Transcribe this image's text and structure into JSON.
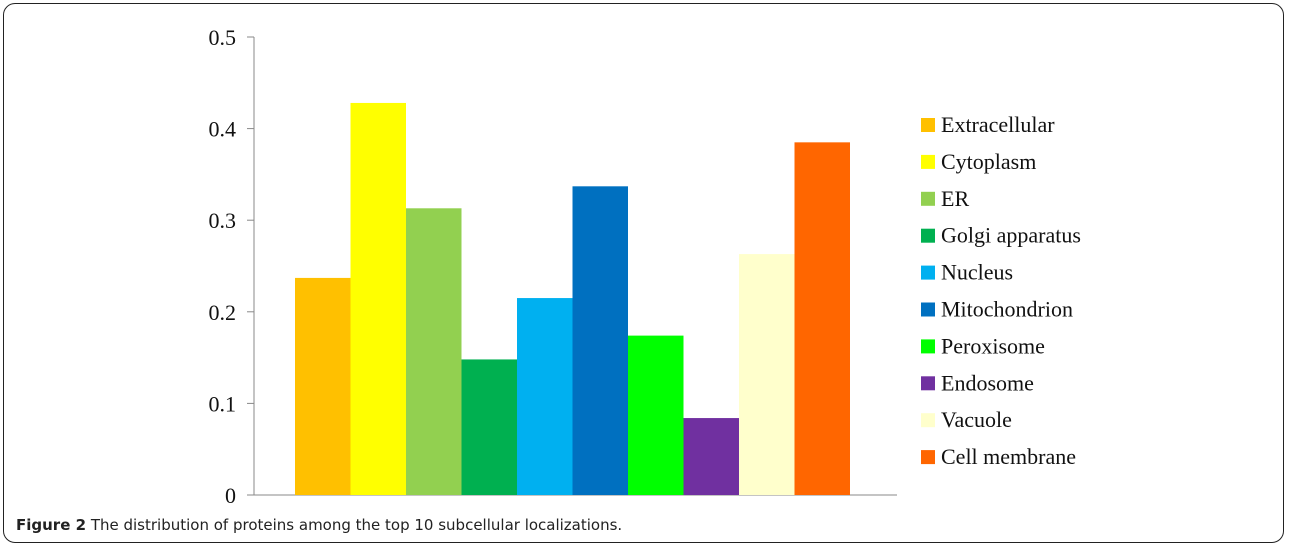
{
  "caption": {
    "label": "Figure 2",
    "text": "The distribution of proteins among the top 10 subcellular localizations."
  },
  "chart_data": {
    "type": "bar",
    "title": "",
    "xlabel": "",
    "ylabel": "",
    "ylim": [
      0,
      0.5
    ],
    "yticks": [
      "0",
      "0.1",
      "0.2",
      "0.3",
      "0.4",
      "0.5"
    ],
    "grid": false,
    "legend_position": "right",
    "categories": [
      "Extracellular",
      "Cytoplasm",
      "ER",
      "Golgi apparatus",
      "Nucleus",
      "Mitochondrion",
      "Peroxisome",
      "Endosome",
      "Vacuole",
      "Cell membrane"
    ],
    "values": [
      0.237,
      0.428,
      0.313,
      0.148,
      0.215,
      0.337,
      0.174,
      0.084,
      0.263,
      0.385
    ],
    "colors": [
      "#FFC000",
      "#FFFF00",
      "#92D050",
      "#00B050",
      "#00B0F0",
      "#0070C0",
      "#00FF00",
      "#7030A0",
      "#FFFFCC",
      "#FF6600"
    ]
  }
}
